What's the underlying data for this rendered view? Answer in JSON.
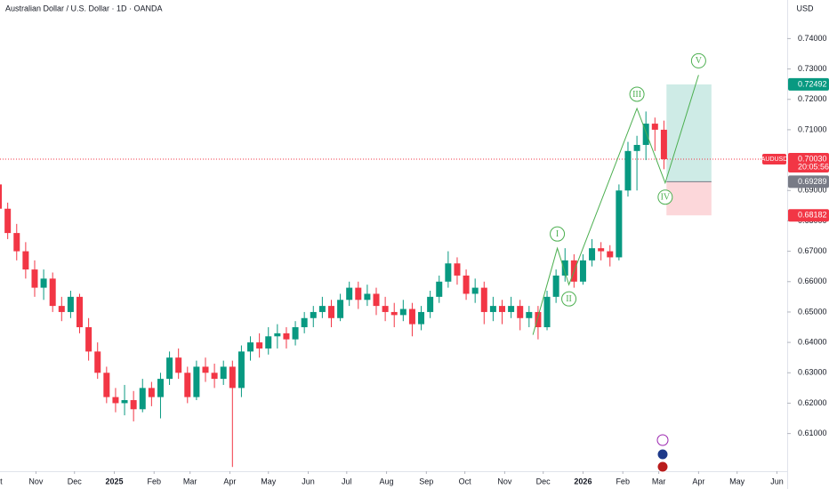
{
  "chart_data": {
    "type": "candlestick",
    "title": "Australian Dollar / U.S. Dollar · 1D · OANDA",
    "currency": "USD",
    "colors": {
      "up": "#089981",
      "down": "#f23645",
      "wave": "#4caf50"
    },
    "xlim": [
      3,
      616
    ],
    "xticks": [
      {
        "value": 0,
        "label": "Oct"
      },
      {
        "value": 31,
        "label": "Nov"
      },
      {
        "value": 61,
        "label": "Dec"
      },
      {
        "value": 92,
        "label": "2025"
      },
      {
        "value": 123,
        "label": "Feb"
      },
      {
        "value": 151,
        "label": "Mar"
      },
      {
        "value": 182,
        "label": "Apr"
      },
      {
        "value": 212,
        "label": "May"
      },
      {
        "value": 243,
        "label": "Jun"
      },
      {
        "value": 273,
        "label": "Jul"
      },
      {
        "value": 304,
        "label": "Aug"
      },
      {
        "value": 335,
        "label": "Sep"
      },
      {
        "value": 365,
        "label": "Oct"
      },
      {
        "value": 396,
        "label": "Nov"
      },
      {
        "value": 426,
        "label": "Dec"
      },
      {
        "value": 457,
        "label": "2026"
      },
      {
        "value": 488,
        "label": "Feb"
      },
      {
        "value": 516,
        "label": "Mar"
      },
      {
        "value": 547,
        "label": "Apr"
      },
      {
        "value": 577,
        "label": "May"
      },
      {
        "value": 608,
        "label": "Jun"
      }
    ],
    "ylim": [
      0.5976,
      0.7527
    ],
    "yticks": [
      {
        "value": 0.61,
        "label": "0.61000"
      },
      {
        "value": 0.62,
        "label": "0.62000"
      },
      {
        "value": 0.63,
        "label": "0.63000"
      },
      {
        "value": 0.64,
        "label": "0.64000"
      },
      {
        "value": 0.65,
        "label": "0.65000"
      },
      {
        "value": 0.66,
        "label": "0.66000"
      },
      {
        "value": 0.67,
        "label": "0.67000"
      },
      {
        "value": 0.68,
        "label": "0.68000"
      },
      {
        "value": 0.69,
        "label": "0.69000"
      },
      {
        "value": 0.71,
        "label": "0.71000"
      },
      {
        "value": 0.72,
        "label": "0.72000"
      },
      {
        "value": 0.73,
        "label": "0.73000"
      },
      {
        "value": 0.74,
        "label": "0.74000"
      }
    ],
    "x": [
      2,
      9,
      16,
      23,
      30,
      37,
      44,
      51,
      58,
      65,
      72,
      79,
      86,
      93,
      100,
      107,
      114,
      121,
      128,
      135,
      142,
      149,
      156,
      163,
      170,
      177,
      184,
      191,
      198,
      205,
      212,
      219,
      226,
      233,
      240,
      247,
      254,
      261,
      268,
      275,
      282,
      289,
      296,
      303,
      310,
      317,
      324,
      331,
      338,
      345,
      352,
      359,
      366,
      373,
      380,
      387,
      394,
      401,
      408,
      415,
      422,
      429,
      436,
      443,
      450,
      457,
      464,
      471,
      478,
      485,
      492,
      499,
      506,
      513,
      520
    ],
    "candles": [
      [
        0.692,
        0.694,
        0.681,
        0.684
      ],
      [
        0.684,
        0.686,
        0.674,
        0.676
      ],
      [
        0.676,
        0.679,
        0.667,
        0.67
      ],
      [
        0.67,
        0.673,
        0.661,
        0.664
      ],
      [
        0.664,
        0.667,
        0.655,
        0.658
      ],
      [
        0.658,
        0.664,
        0.654,
        0.661
      ],
      [
        0.661,
        0.663,
        0.65,
        0.652
      ],
      [
        0.652,
        0.655,
        0.647,
        0.65
      ],
      [
        0.65,
        0.657,
        0.648,
        0.655
      ],
      [
        0.655,
        0.656,
        0.643,
        0.645
      ],
      [
        0.645,
        0.648,
        0.634,
        0.637
      ],
      [
        0.637,
        0.64,
        0.628,
        0.63
      ],
      [
        0.63,
        0.632,
        0.62,
        0.622
      ],
      [
        0.622,
        0.625,
        0.617,
        0.62
      ],
      [
        0.62,
        0.626,
        0.616,
        0.621
      ],
      [
        0.621,
        0.624,
        0.614,
        0.618
      ],
      [
        0.618,
        0.628,
        0.617,
        0.625
      ],
      [
        0.625,
        0.627,
        0.619,
        0.622
      ],
      [
        0.622,
        0.63,
        0.615,
        0.628
      ],
      [
        0.628,
        0.637,
        0.626,
        0.635
      ],
      [
        0.635,
        0.638,
        0.628,
        0.63
      ],
      [
        0.63,
        0.632,
        0.62,
        0.622
      ],
      [
        0.622,
        0.634,
        0.621,
        0.632
      ],
      [
        0.632,
        0.635,
        0.627,
        0.63
      ],
      [
        0.63,
        0.633,
        0.625,
        0.628
      ],
      [
        0.628,
        0.634,
        0.626,
        0.632
      ],
      [
        0.632,
        0.634,
        0.599,
        0.625
      ],
      [
        0.625,
        0.639,
        0.622,
        0.637
      ],
      [
        0.637,
        0.642,
        0.634,
        0.64
      ],
      [
        0.64,
        0.643,
        0.635,
        0.638
      ],
      [
        0.638,
        0.645,
        0.636,
        0.642
      ],
      [
        0.642,
        0.646,
        0.638,
        0.643
      ],
      [
        0.643,
        0.645,
        0.638,
        0.641
      ],
      [
        0.641,
        0.647,
        0.639,
        0.645
      ],
      [
        0.645,
        0.65,
        0.643,
        0.648
      ],
      [
        0.648,
        0.652,
        0.645,
        0.65
      ],
      [
        0.65,
        0.655,
        0.648,
        0.652
      ],
      [
        0.652,
        0.654,
        0.645,
        0.648
      ],
      [
        0.648,
        0.656,
        0.647,
        0.654
      ],
      [
        0.654,
        0.66,
        0.652,
        0.658
      ],
      [
        0.658,
        0.66,
        0.651,
        0.654
      ],
      [
        0.654,
        0.659,
        0.652,
        0.656
      ],
      [
        0.656,
        0.658,
        0.649,
        0.652
      ],
      [
        0.652,
        0.655,
        0.647,
        0.65
      ],
      [
        0.65,
        0.653,
        0.645,
        0.649
      ],
      [
        0.649,
        0.654,
        0.647,
        0.651
      ],
      [
        0.651,
        0.653,
        0.642,
        0.646
      ],
      [
        0.646,
        0.652,
        0.644,
        0.65
      ],
      [
        0.65,
        0.657,
        0.648,
        0.655
      ],
      [
        0.655,
        0.662,
        0.653,
        0.66
      ],
      [
        0.66,
        0.67,
        0.658,
        0.666
      ],
      [
        0.666,
        0.668,
        0.659,
        0.662
      ],
      [
        0.662,
        0.664,
        0.654,
        0.656
      ],
      [
        0.656,
        0.661,
        0.653,
        0.658
      ],
      [
        0.658,
        0.66,
        0.646,
        0.65
      ],
      [
        0.65,
        0.655,
        0.647,
        0.652
      ],
      [
        0.652,
        0.654,
        0.646,
        0.65
      ],
      [
        0.65,
        0.655,
        0.648,
        0.652
      ],
      [
        0.652,
        0.654,
        0.644,
        0.648
      ],
      [
        0.648,
        0.652,
        0.645,
        0.65
      ],
      [
        0.65,
        0.652,
        0.641,
        0.645
      ],
      [
        0.645,
        0.657,
        0.644,
        0.655
      ],
      [
        0.655,
        0.664,
        0.653,
        0.662
      ],
      [
        0.662,
        0.671,
        0.66,
        0.667
      ],
      [
        0.667,
        0.669,
        0.658,
        0.66
      ],
      [
        0.66,
        0.669,
        0.659,
        0.667
      ],
      [
        0.667,
        0.674,
        0.665,
        0.671
      ],
      [
        0.671,
        0.673,
        0.667,
        0.67
      ],
      [
        0.67,
        0.672,
        0.665,
        0.668
      ],
      [
        0.668,
        0.692,
        0.667,
        0.69
      ],
      [
        0.69,
        0.706,
        0.688,
        0.703
      ],
      [
        0.703,
        0.708,
        0.69,
        0.705
      ],
      [
        0.705,
        0.716,
        0.7,
        0.712
      ],
      [
        0.712,
        0.714,
        0.703,
        0.71
      ],
      [
        0.71,
        0.713,
        0.697,
        0.7003
      ]
    ],
    "waves": [
      {
        "label": null,
        "x": 418,
        "y": 0.6425,
        "pos": "below"
      },
      {
        "label": "I",
        "x": 437,
        "y": 0.671,
        "pos": "above"
      },
      {
        "label": "II",
        "x": 446,
        "y": 0.659,
        "pos": "below"
      },
      {
        "label": "III",
        "x": 499,
        "y": 0.717,
        "pos": "above"
      },
      {
        "label": "IV",
        "x": 521,
        "y": 0.6925,
        "pos": "below"
      },
      {
        "label": "V",
        "x": 547,
        "y": 0.728,
        "pos": "above"
      }
    ],
    "position": {
      "x": [
        522,
        557
      ],
      "target": {
        "value": 0.72492,
        "label": "0.72492"
      },
      "entry": {
        "value": 0.69289,
        "label": "0.69289"
      },
      "stop": {
        "value": 0.68182,
        "label": "0.68182"
      }
    },
    "last_price": {
      "symbol": "AUDUSD",
      "value": 0.7003,
      "label": "0.70030",
      "countdown": "20:05:56"
    }
  }
}
